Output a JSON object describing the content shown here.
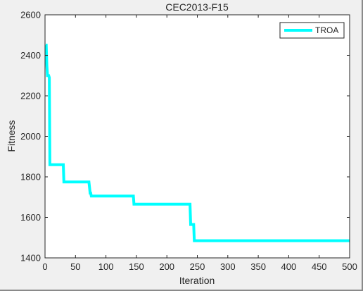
{
  "chart_data": {
    "type": "line",
    "title": "CEC2013-F15",
    "xlabel": "Iteration",
    "ylabel": "Fitness",
    "xlim": [
      0,
      500
    ],
    "ylim": [
      1400,
      2600
    ],
    "xticks": [
      0,
      50,
      100,
      150,
      200,
      250,
      300,
      350,
      400,
      450,
      500
    ],
    "yticks": [
      1400,
      1600,
      1800,
      2000,
      2200,
      2400,
      2600
    ],
    "grid": false,
    "legend_position": "top-right",
    "series": [
      {
        "name": "TROA",
        "color": "#00ffff",
        "x": [
          1,
          2,
          3,
          4,
          5,
          6,
          7,
          8,
          9,
          30,
          31,
          72,
          73,
          74,
          75,
          76,
          77,
          78,
          145,
          146,
          238,
          239,
          240,
          244,
          245,
          246,
          500
        ],
        "y": [
          2450,
          2450,
          2350,
          2300,
          2300,
          2300,
          2290,
          1860,
          1860,
          1860,
          1775,
          1775,
          1750,
          1720,
          1720,
          1705,
          1705,
          1705,
          1705,
          1665,
          1665,
          1565,
          1565,
          1565,
          1485,
          1485,
          1485
        ]
      }
    ]
  }
}
